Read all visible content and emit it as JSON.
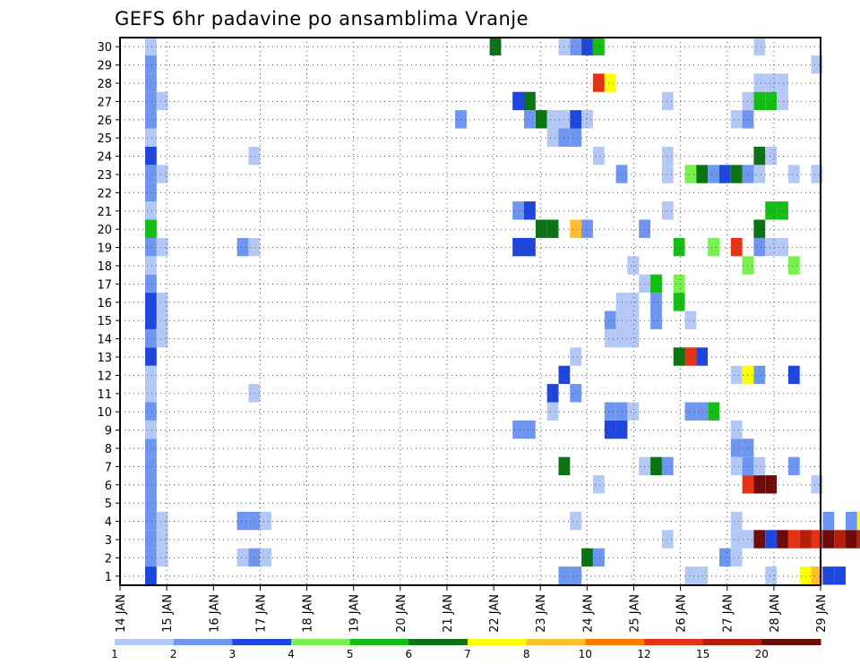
{
  "chart_data": {
    "type": "heatmap",
    "title": "GEFS 6hr padavine po ansamblima Vranje",
    "x_tick_labels": [
      "14 JAN",
      "15 JAN",
      "16 JAN",
      "17 JAN",
      "18 JAN",
      "19 JAN",
      "20 JAN",
      "21 JAN",
      "22 JAN",
      "23 JAN",
      "24 JAN",
      "25 JAN",
      "26 JAN",
      "27 JAN",
      "28 JAN",
      "29 JAN"
    ],
    "y_tick_labels": [
      "1",
      "2",
      "3",
      "4",
      "5",
      "6",
      "7",
      "8",
      "9",
      "10",
      "11",
      "12",
      "13",
      "14",
      "15",
      "16",
      "17",
      "18",
      "19",
      "20",
      "21",
      "22",
      "23",
      "24",
      "25",
      "26",
      "27",
      "28",
      "29",
      "30"
    ],
    "xlim": [
      0,
      60
    ],
    "ylim": [
      0,
      30
    ],
    "grid": true,
    "legend": {
      "position": "bottom",
      "labels": [
        "1",
        "2",
        "3",
        "4",
        "5",
        "6",
        "7",
        "8",
        "10",
        "12",
        "15",
        "20"
      ],
      "colors": [
        "#b4c8f5",
        "#6e96f0",
        "#1e46dc",
        "#78f050",
        "#14be14",
        "#0a7314",
        "#ffff00",
        "#ffbe32",
        "#ff7800",
        "#e63214",
        "#b41e0a",
        "#6e0a0a"
      ]
    },
    "cells": [
      [
        2,
        0,
        3
      ],
      [
        2,
        1,
        2
      ],
      [
        2,
        2,
        2
      ],
      [
        2,
        3,
        2
      ],
      [
        2,
        4,
        2
      ],
      [
        2,
        5,
        2
      ],
      [
        2,
        6,
        2
      ],
      [
        2,
        7,
        2
      ],
      [
        2,
        8,
        1
      ],
      [
        2,
        9,
        2
      ],
      [
        2,
        10,
        1
      ],
      [
        2,
        11,
        1
      ],
      [
        2,
        12,
        3
      ],
      [
        2,
        13,
        2
      ],
      [
        2,
        14,
        3
      ],
      [
        2,
        15,
        3
      ],
      [
        2,
        16,
        2
      ],
      [
        2,
        17,
        1
      ],
      [
        2,
        18,
        2
      ],
      [
        2,
        19,
        5
      ],
      [
        2,
        20,
        1
      ],
      [
        2,
        21,
        2
      ],
      [
        2,
        22,
        2
      ],
      [
        2,
        23,
        3
      ],
      [
        2,
        24,
        1
      ],
      [
        2,
        25,
        2
      ],
      [
        2,
        26,
        2
      ],
      [
        2,
        27,
        2
      ],
      [
        2,
        28,
        2
      ],
      [
        2,
        29,
        1
      ],
      [
        3,
        1,
        1
      ],
      [
        3,
        2,
        1
      ],
      [
        3,
        3,
        1
      ],
      [
        3,
        13,
        1
      ],
      [
        3,
        14,
        1
      ],
      [
        3,
        15,
        1
      ],
      [
        3,
        18,
        1
      ],
      [
        3,
        22,
        1
      ],
      [
        3,
        26,
        1
      ],
      [
        10,
        3,
        2
      ],
      [
        10,
        1,
        1
      ],
      [
        10,
        18,
        2
      ],
      [
        11,
        3,
        2
      ],
      [
        11,
        1,
        2
      ],
      [
        11,
        18,
        1
      ],
      [
        11,
        10,
        1
      ],
      [
        11,
        23,
        1
      ],
      [
        12,
        3,
        1
      ],
      [
        12,
        1,
        1
      ],
      [
        29,
        25,
        2
      ],
      [
        32,
        29,
        6
      ],
      [
        34,
        8,
        2
      ],
      [
        34,
        18,
        3
      ],
      [
        34,
        20,
        2
      ],
      [
        34,
        26,
        3
      ],
      [
        35,
        8,
        2
      ],
      [
        35,
        18,
        3
      ],
      [
        35,
        20,
        3
      ],
      [
        35,
        25,
        2
      ],
      [
        35,
        26,
        6
      ],
      [
        36,
        25,
        6
      ],
      [
        36,
        19,
        6
      ],
      [
        37,
        10,
        3
      ],
      [
        37,
        9,
        1
      ],
      [
        37,
        19,
        6
      ],
      [
        37,
        24,
        1
      ],
      [
        37,
        25,
        1
      ],
      [
        38,
        0,
        2
      ],
      [
        38,
        6,
        6
      ],
      [
        38,
        11,
        3
      ],
      [
        38,
        24,
        2
      ],
      [
        38,
        25,
        1
      ],
      [
        38,
        29,
        1
      ],
      [
        39,
        0,
        2
      ],
      [
        39,
        3,
        1
      ],
      [
        39,
        10,
        2
      ],
      [
        39,
        12,
        1
      ],
      [
        39,
        25,
        3
      ],
      [
        39,
        24,
        2
      ],
      [
        39,
        19,
        8
      ],
      [
        39,
        29,
        2
      ],
      [
        40,
        1,
        6
      ],
      [
        40,
        19,
        2
      ],
      [
        40,
        29,
        3
      ],
      [
        40,
        25,
        1
      ],
      [
        41,
        1,
        2
      ],
      [
        41,
        5,
        1
      ],
      [
        41,
        23,
        1
      ],
      [
        41,
        27,
        10
      ],
      [
        41,
        29,
        5
      ],
      [
        42,
        8,
        3
      ],
      [
        42,
        9,
        2
      ],
      [
        42,
        13,
        1
      ],
      [
        42,
        14,
        2
      ],
      [
        42,
        27,
        7
      ],
      [
        43,
        8,
        3
      ],
      [
        43,
        9,
        2
      ],
      [
        43,
        13,
        1
      ],
      [
        43,
        14,
        1
      ],
      [
        43,
        15,
        1
      ],
      [
        43,
        22,
        2
      ],
      [
        44,
        9,
        1
      ],
      [
        44,
        13,
        1
      ],
      [
        44,
        14,
        1
      ],
      [
        44,
        15,
        1
      ],
      [
        44,
        17,
        1
      ],
      [
        45,
        6,
        1
      ],
      [
        45,
        16,
        1
      ],
      [
        45,
        19,
        2
      ],
      [
        46,
        6,
        6
      ],
      [
        46,
        14,
        2
      ],
      [
        46,
        15,
        2
      ],
      [
        46,
        16,
        5
      ],
      [
        47,
        2,
        1
      ],
      [
        47,
        6,
        2
      ],
      [
        47,
        22,
        1
      ],
      [
        47,
        23,
        1
      ],
      [
        47,
        26,
        1
      ],
      [
        47,
        20,
        1
      ],
      [
        48,
        12,
        6
      ],
      [
        48,
        15,
        5
      ],
      [
        48,
        16,
        4
      ],
      [
        48,
        18,
        5
      ],
      [
        49,
        0,
        1
      ],
      [
        49,
        12,
        10
      ],
      [
        49,
        9,
        2
      ],
      [
        49,
        14,
        1
      ],
      [
        49,
        22,
        4
      ],
      [
        50,
        0,
        1
      ],
      [
        50,
        9,
        2
      ],
      [
        50,
        12,
        3
      ],
      [
        50,
        22,
        6
      ],
      [
        51,
        9,
        5
      ],
      [
        51,
        18,
        4
      ],
      [
        51,
        22,
        2
      ],
      [
        52,
        1,
        2
      ],
      [
        52,
        22,
        3
      ],
      [
        53,
        1,
        1
      ],
      [
        53,
        2,
        1
      ],
      [
        53,
        3,
        1
      ],
      [
        53,
        6,
        1
      ],
      [
        53,
        7,
        2
      ],
      [
        53,
        8,
        1
      ],
      [
        53,
        11,
        1
      ],
      [
        53,
        18,
        10
      ],
      [
        53,
        22,
        6
      ],
      [
        53,
        25,
        1
      ],
      [
        54,
        2,
        1
      ],
      [
        54,
        5,
        10
      ],
      [
        54,
        6,
        2
      ],
      [
        54,
        7,
        2
      ],
      [
        54,
        11,
        7
      ],
      [
        54,
        17,
        4
      ],
      [
        54,
        22,
        2
      ],
      [
        54,
        25,
        2
      ],
      [
        54,
        26,
        1
      ],
      [
        55,
        2,
        12
      ],
      [
        55,
        5,
        12
      ],
      [
        55,
        6,
        1
      ],
      [
        55,
        11,
        2
      ],
      [
        55,
        18,
        2
      ],
      [
        55,
        19,
        6
      ],
      [
        55,
        22,
        1
      ],
      [
        55,
        23,
        6
      ],
      [
        55,
        26,
        5
      ],
      [
        55,
        27,
        1
      ],
      [
        55,
        29,
        1
      ],
      [
        56,
        0,
        1
      ],
      [
        56,
        2,
        3
      ],
      [
        56,
        5,
        12
      ],
      [
        56,
        18,
        1
      ],
      [
        56,
        20,
        5
      ],
      [
        56,
        23,
        1
      ],
      [
        56,
        26,
        5
      ],
      [
        56,
        27,
        1
      ],
      [
        57,
        2,
        12
      ],
      [
        57,
        18,
        1
      ],
      [
        57,
        20,
        5
      ],
      [
        57,
        26,
        1
      ],
      [
        57,
        27,
        1
      ],
      [
        58,
        2,
        10
      ],
      [
        58,
        6,
        2
      ],
      [
        58,
        11,
        3
      ],
      [
        58,
        17,
        4
      ],
      [
        58,
        22,
        1
      ],
      [
        59,
        2,
        11
      ],
      [
        59,
        0,
        7
      ],
      [
        60,
        2,
        10
      ],
      [
        60,
        0,
        8
      ],
      [
        60,
        5,
        1
      ],
      [
        60,
        22,
        1
      ],
      [
        60,
        28,
        1
      ],
      [
        61,
        2,
        12
      ],
      [
        61,
        0,
        3
      ],
      [
        61,
        3,
        2
      ],
      [
        62,
        2,
        11
      ],
      [
        62,
        0,
        3
      ],
      [
        63,
        2,
        12
      ],
      [
        63,
        3,
        2
      ],
      [
        64,
        2,
        11
      ],
      [
        64,
        3,
        7
      ],
      [
        65,
        2,
        6
      ],
      [
        65,
        4,
        7
      ],
      [
        65,
        5,
        1
      ],
      [
        65,
        13,
        1
      ],
      [
        65,
        18,
        1
      ],
      [
        65,
        19,
        1
      ],
      [
        65,
        26,
        2
      ],
      [
        66,
        2,
        1
      ],
      [
        67,
        2,
        1
      ],
      [
        67,
        9,
        1
      ],
      [
        67,
        22,
        3
      ]
    ]
  }
}
